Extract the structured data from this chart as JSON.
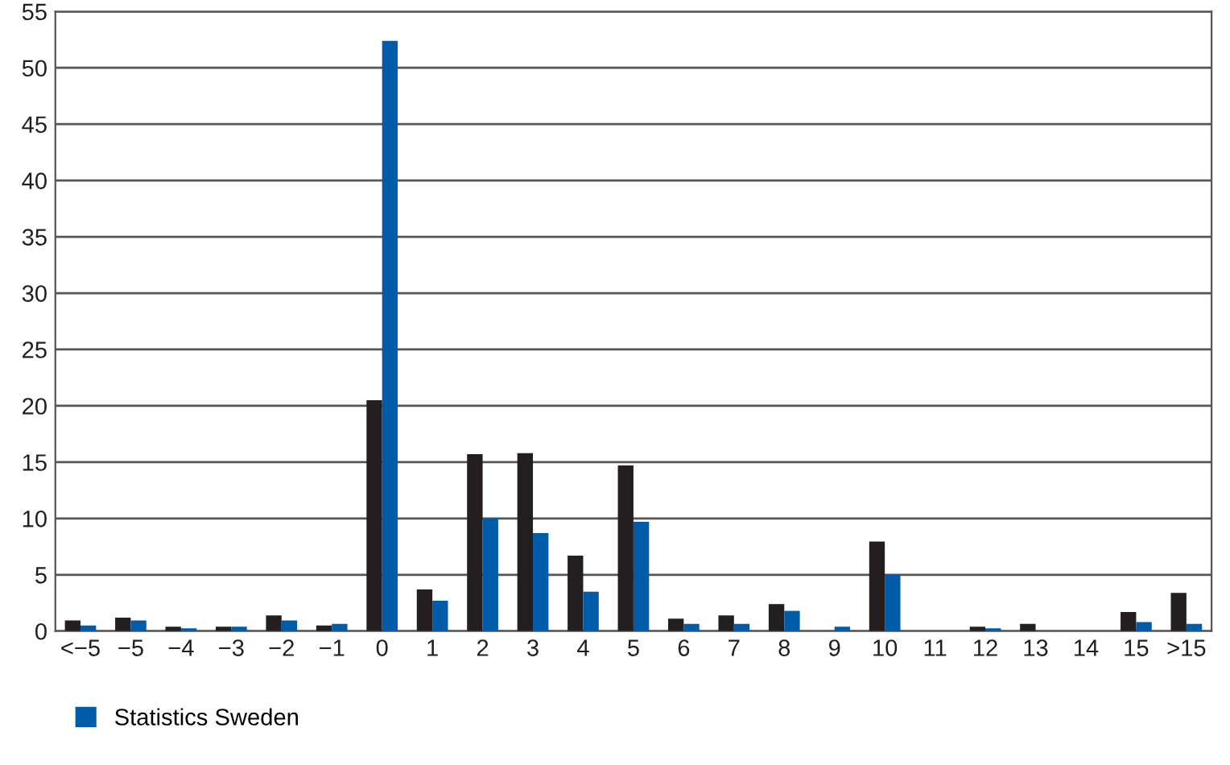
{
  "chart_data": {
    "type": "bar",
    "categories": [
      "<−5",
      "−5",
      "−4",
      "−3",
      "−2",
      "−1",
      "0",
      "1",
      "2",
      "3",
      "4",
      "5",
      "6",
      "7",
      "8",
      "9",
      "10",
      "11",
      "12",
      "13",
      "14",
      "15",
      ">15"
    ],
    "series": [
      {
        "color": "#231f20",
        "values": [
          0.95,
          1.2,
          0.4,
          0.4,
          1.4,
          0.5,
          20.5,
          3.7,
          15.7,
          15.8,
          6.7,
          14.7,
          1.1,
          1.4,
          2.4,
          0,
          7.95,
          0,
          0.4,
          0.65,
          0,
          1.7,
          3.4
        ]
      },
      {
        "name": "Statistics Sweden",
        "color": "#005ca9",
        "values": [
          0.5,
          0.95,
          0.25,
          0.4,
          0.95,
          0.65,
          52.4,
          2.7,
          10.0,
          8.7,
          3.5,
          9.7,
          0.65,
          0.65,
          1.8,
          0.4,
          5.0,
          0,
          0.25,
          0,
          0,
          0.8,
          0.65
        ]
      }
    ],
    "ylim": [
      0,
      55
    ],
    "yticks": [
      0,
      5,
      10,
      15,
      20,
      25,
      30,
      35,
      40,
      45,
      50,
      55
    ],
    "grid": "y",
    "legend": "bottom left"
  }
}
